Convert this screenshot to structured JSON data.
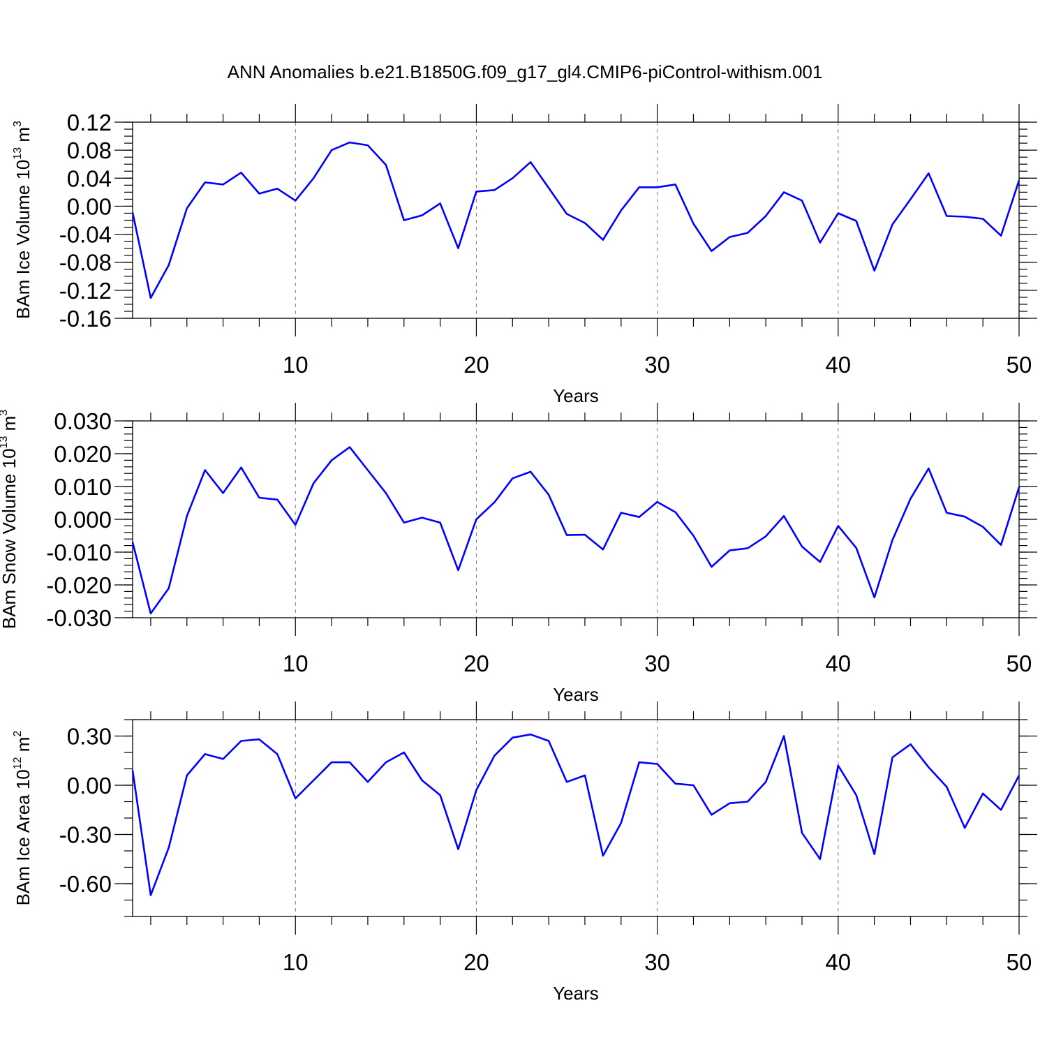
{
  "title": "ANN Anomalies b.e21.B1850G.f09_g17_gl4.CMIP6-piControl-withism.001",
  "chart_data": [
    {
      "type": "line",
      "ylabel": {
        "main": "BAm Ice Volume 10",
        "sup1": "13",
        "mid": " m",
        "sup2": "3"
      },
      "xlabel": "Years",
      "xlim": [
        1,
        50
      ],
      "ylim": [
        -0.16,
        0.12
      ],
      "yticks": [
        -0.16,
        -0.12,
        -0.08,
        -0.04,
        0.0,
        0.04,
        0.08,
        0.12
      ],
      "yticklabels": [
        "-0.16",
        "-0.12",
        "-0.08",
        "-0.04",
        "0.00",
        "0.04",
        "0.08",
        "0.12"
      ],
      "yminor_step": 0.01,
      "xticks": [
        10,
        20,
        30,
        40,
        50
      ],
      "xticklabels": [
        "10",
        "20",
        "30",
        "40",
        "50"
      ],
      "grid": "dashed vertical at x ticks",
      "color": "#0000ff",
      "x": [
        1,
        2,
        3,
        4,
        5,
        6,
        7,
        8,
        9,
        10,
        11,
        12,
        13,
        14,
        15,
        16,
        17,
        18,
        19,
        20,
        21,
        22,
        23,
        24,
        25,
        26,
        27,
        28,
        29,
        30,
        31,
        32,
        33,
        34,
        35,
        36,
        37,
        38,
        39,
        40,
        41,
        42,
        43,
        44,
        45,
        46,
        47,
        48,
        49,
        50
      ],
      "values": [
        -0.009,
        -0.131,
        -0.084,
        -0.003,
        0.034,
        0.031,
        0.048,
        0.018,
        0.025,
        0.008,
        0.04,
        0.08,
        0.091,
        0.087,
        0.059,
        -0.02,
        -0.013,
        0.004,
        -0.06,
        0.021,
        0.023,
        0.04,
        0.063,
        0.026,
        -0.011,
        -0.024,
        -0.048,
        -0.006,
        0.027,
        0.027,
        0.031,
        -0.025,
        -0.064,
        -0.044,
        -0.038,
        -0.014,
        0.02,
        0.008,
        -0.052,
        -0.01,
        -0.021,
        -0.092,
        -0.026,
        0.01,
        0.047,
        -0.014,
        -0.015,
        -0.018,
        -0.042,
        0.037
      ]
    },
    {
      "type": "line",
      "ylabel": {
        "main": "BAm Snow Volume 10",
        "sup1": "13",
        "mid": " m",
        "sup2": "3"
      },
      "xlabel": "Years",
      "xlim": [
        1,
        50
      ],
      "ylim": [
        -0.03,
        0.03
      ],
      "yticks": [
        -0.03,
        -0.02,
        -0.01,
        0.0,
        0.01,
        0.02,
        0.03
      ],
      "yticklabels": [
        "-0.030",
        "-0.020",
        "-0.010",
        "0.000",
        "0.010",
        "0.020",
        "0.030"
      ],
      "yminor_step": 0.002,
      "xticks": [
        10,
        20,
        30,
        40,
        50
      ],
      "xticklabels": [
        "10",
        "20",
        "30",
        "40",
        "50"
      ],
      "grid": "dashed vertical at x ticks",
      "color": "#0000ff",
      "x": [
        1,
        2,
        3,
        4,
        5,
        6,
        7,
        8,
        9,
        10,
        11,
        12,
        13,
        14,
        15,
        16,
        17,
        18,
        19,
        20,
        21,
        22,
        23,
        24,
        25,
        26,
        27,
        28,
        29,
        30,
        31,
        32,
        33,
        34,
        35,
        36,
        37,
        38,
        39,
        40,
        41,
        42,
        43,
        44,
        45,
        46,
        47,
        48,
        49,
        50
      ],
      "values": [
        -0.007,
        -0.0287,
        -0.021,
        0.001,
        0.015,
        0.008,
        0.0158,
        0.0066,
        0.006,
        -0.0017,
        0.011,
        0.018,
        0.022,
        0.015,
        0.008,
        -0.001,
        0.0005,
        -0.001,
        -0.0155,
        0.0,
        0.0052,
        0.0125,
        0.0145,
        0.0075,
        -0.0048,
        -0.0047,
        -0.0092,
        0.002,
        0.0007,
        0.0053,
        0.0022,
        -0.005,
        -0.0145,
        -0.0095,
        -0.0088,
        -0.0052,
        0.001,
        -0.0083,
        -0.013,
        -0.002,
        -0.0087,
        -0.0238,
        -0.0063,
        0.0063,
        0.0155,
        0.002,
        0.0008,
        -0.0023,
        -0.0078,
        0.0098
      ]
    },
    {
      "type": "line",
      "ylabel": {
        "main": "BAm Ice Area 10",
        "sup1": "12",
        "mid": " m",
        "sup2": "2"
      },
      "xlabel": "Years",
      "xlim": [
        1,
        50
      ],
      "ylim": [
        -0.8,
        0.4
      ],
      "yticks": [
        -0.6,
        -0.3,
        0.0,
        0.3
      ],
      "yticklabels": [
        "-0.60",
        "-0.30",
        "0.00",
        "0.30"
      ],
      "yminor_step": 0.1,
      "xticks": [
        10,
        20,
        30,
        40,
        50
      ],
      "xticklabels": [
        "10",
        "20",
        "30",
        "40",
        "50"
      ],
      "grid": "dashed vertical at x ticks",
      "color": "#0000ff",
      "x": [
        1,
        2,
        3,
        4,
        5,
        6,
        7,
        8,
        9,
        10,
        11,
        12,
        13,
        14,
        15,
        16,
        17,
        18,
        19,
        20,
        21,
        22,
        23,
        24,
        25,
        26,
        27,
        28,
        29,
        30,
        31,
        32,
        33,
        34,
        35,
        36,
        37,
        38,
        39,
        40,
        41,
        42,
        43,
        44,
        45,
        46,
        47,
        48,
        49,
        50
      ],
      "values": [
        0.09,
        -0.67,
        -0.38,
        0.06,
        0.19,
        0.16,
        0.27,
        0.28,
        0.19,
        -0.08,
        0.03,
        0.14,
        0.14,
        0.02,
        0.14,
        0.2,
        0.03,
        -0.06,
        -0.39,
        -0.03,
        0.18,
        0.29,
        0.31,
        0.27,
        0.02,
        0.06,
        -0.43,
        -0.23,
        0.14,
        0.13,
        0.01,
        0.0,
        -0.18,
        -0.11,
        -0.1,
        0.02,
        0.3,
        -0.29,
        -0.45,
        0.12,
        -0.06,
        -0.42,
        0.17,
        0.25,
        0.11,
        -0.01,
        -0.26,
        -0.05,
        -0.15,
        0.06
      ]
    }
  ]
}
